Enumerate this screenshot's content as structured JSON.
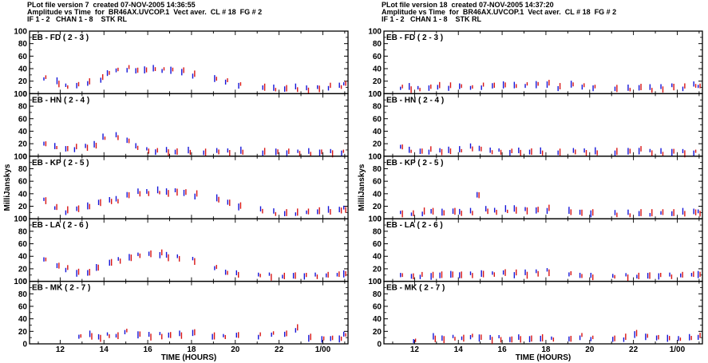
{
  "colors": {
    "primary_marks": "#1414d8",
    "secondary_marks": "#d81414",
    "axes": "#000000",
    "background": "#ffffff"
  },
  "plots": [
    {
      "header": {
        "line1": "PLot file version 7  created 07-NOV-2005 14:36:55",
        "line2": "Amplitude vs Time  for  BR46AX.UVCOP.1  Vect aver.  CL # 18  FG # 2",
        "line3": "IF 1 - 2   CHAN 1 - 8    STK RL"
      },
      "ylabel": "MilliJanskys",
      "xlabel": "TIME (HOURS)",
      "xtick_labels": [
        "12",
        "14",
        "16",
        "18",
        "20",
        "22",
        "1/00"
      ]
    },
    {
      "header": {
        "line1": "PLot file version 18  created 07-NOV-2005 14:37:20",
        "line2": "Amplitude vs Time  for  BR46AX.UVCOP.1  Vect aver.  CL # 18  FG # 2",
        "line3": "IF 1 - 2   CHAN 1 - 8    STK RL"
      },
      "ylabel": "MilliJanskys",
      "xlabel": "TIME (HOURS)",
      "xtick_labels": [
        "12",
        "14",
        "16",
        "18",
        "20",
        "22",
        "1/00"
      ]
    }
  ],
  "chart_data": [
    {
      "type": "scatter",
      "title": "Amplitude vs Time  for  BR46AX.UVCOP.1  Vect aver.  CL # 18  FG # 2",
      "xlabel": "TIME (HOURS)",
      "ylabel": "MilliJanskys",
      "xlim": [
        10.6,
        25.15
      ],
      "ylim": [
        0,
        100
      ],
      "yticks": [
        0,
        20,
        40,
        60,
        80,
        100
      ],
      "grid": false,
      "panels": [
        {
          "label": "EB - FD ( 2 - 3 )",
          "x": [
            11.3,
            11.9,
            12.3,
            12.8,
            13.3,
            13.9,
            14.2,
            14.6,
            15.1,
            15.5,
            15.9,
            16.3,
            16.7,
            17.1,
            17.6,
            18.1,
            19.1,
            19.6,
            20.2,
            21.3,
            21.8,
            22.3,
            22.8,
            23.3,
            23.8,
            24.3,
            24.8,
            25.0
          ],
          "y": [
            25,
            18,
            12,
            14,
            18,
            24,
            33,
            38,
            40,
            37,
            38,
            40,
            38,
            38,
            36,
            30,
            24,
            20,
            14,
            10,
            8,
            8,
            9,
            7,
            9,
            11,
            12,
            16
          ]
        },
        {
          "label": "EB - HN ( 2 - 4 )",
          "x": [
            11.3,
            11.8,
            12.3,
            12.7,
            13.2,
            13.6,
            14.0,
            14.6,
            15.1,
            15.5,
            16.0,
            16.4,
            16.9,
            17.3,
            17.9,
            18.6,
            19.2,
            19.7,
            20.3,
            21.3,
            21.9,
            22.4,
            22.9,
            23.4,
            23.9,
            24.4,
            24.9
          ],
          "y": [
            20,
            15,
            12,
            13,
            15,
            18,
            30,
            32,
            25,
            15,
            10,
            8,
            8,
            7,
            8,
            6,
            8,
            7,
            8,
            6,
            7,
            6,
            6,
            6,
            6,
            6,
            6
          ]
        },
        {
          "label": "EB - KP ( 2 - 5 )",
          "x": [
            11.3,
            11.8,
            12.3,
            12.8,
            13.3,
            13.8,
            14.3,
            14.6,
            15.1,
            15.6,
            16.0,
            16.5,
            16.9,
            17.3,
            17.7,
            18.2,
            19.2,
            19.7,
            20.2,
            21.2,
            21.8,
            22.3,
            22.8,
            23.3,
            23.8,
            24.3,
            24.8,
            25.0
          ],
          "y": [
            30,
            18,
            12,
            16,
            20,
            26,
            29,
            30,
            38,
            42,
            42,
            44,
            42,
            44,
            42,
            38,
            32,
            26,
            20,
            14,
            10,
            9,
            9,
            11,
            12,
            13,
            14,
            16
          ]
        },
        {
          "label": "EB - LA ( 2 - 6 )",
          "x": [
            11.3,
            11.9,
            12.3,
            12.8,
            13.3,
            13.7,
            14.3,
            14.7,
            15.2,
            15.6,
            16.1,
            16.6,
            16.9,
            17.4,
            18.1,
            19.1,
            19.6,
            20.1,
            21.1,
            21.6,
            22.2,
            22.7,
            23.2,
            23.7,
            24.2,
            24.7,
            25.0
          ],
          "y": [
            35,
            25,
            20,
            14,
            14,
            22,
            30,
            34,
            38,
            42,
            44,
            44,
            40,
            38,
            34,
            22,
            14,
            12,
            10,
            9,
            8,
            9,
            9,
            9,
            10,
            11,
            12
          ]
        },
        {
          "label": "EB - MK ( 2 - 7 )",
          "x": [
            12.9,
            13.4,
            13.8,
            14.2,
            14.6,
            15.0,
            15.6,
            16.1,
            16.6,
            17.0,
            17.5,
            18.1,
            19.0,
            19.5,
            20.1,
            21.1,
            21.7,
            22.3,
            22.8,
            23.4,
            24.0,
            24.4,
            24.8,
            25.0
          ],
          "y": [
            12,
            14,
            10,
            14,
            13,
            20,
            15,
            13,
            14,
            14,
            15,
            18,
            12,
            12,
            14,
            13,
            16,
            16,
            24,
            10,
            8,
            9,
            8,
            15
          ]
        }
      ]
    },
    {
      "type": "scatter",
      "title": "Amplitude vs Time  for  BR46AX.UVCOP.1  Vect aver.  CL # 18  FG # 2",
      "xlabel": "TIME (HOURS)",
      "ylabel": "MilliJanskys",
      "xlim": [
        10.6,
        25.15
      ],
      "ylim": [
        0,
        100
      ],
      "yticks": [
        0,
        20,
        40,
        60,
        80,
        100
      ],
      "grid": false,
      "panels": [
        {
          "label": "EB - FD ( 2 - 3 )",
          "x": [
            11.4,
            11.8,
            12.2,
            12.7,
            13.1,
            13.6,
            14.1,
            14.6,
            15.1,
            15.6,
            16.1,
            16.6,
            17.1,
            17.6,
            18.1,
            18.6,
            19.2,
            19.7,
            20.2,
            21.2,
            21.8,
            22.3,
            22.8,
            23.3,
            23.8,
            24.3,
            24.8,
            25.0
          ],
          "y": [
            10,
            9,
            8,
            10,
            12,
            11,
            12,
            10,
            12,
            13,
            14,
            13,
            14,
            15,
            16,
            10,
            15,
            12,
            10,
            8,
            8,
            10,
            8,
            9,
            12,
            10,
            14,
            12
          ]
        },
        {
          "label": "EB - HN ( 2 - 4 )",
          "x": [
            11.4,
            11.8,
            12.3,
            12.7,
            13.2,
            13.6,
            14.1,
            14.6,
            15.0,
            15.5,
            15.9,
            16.4,
            16.8,
            17.3,
            17.8,
            18.6,
            19.3,
            19.8,
            20.3,
            21.2,
            21.8,
            22.3,
            22.8,
            23.3,
            23.8,
            24.3,
            24.8
          ],
          "y": [
            15,
            9,
            8,
            9,
            8,
            9,
            10,
            14,
            12,
            8,
            8,
            7,
            7,
            7,
            7,
            6,
            8,
            7,
            7,
            6,
            8,
            10,
            7,
            6,
            7,
            6,
            6
          ]
        },
        {
          "label": "EB - KP ( 2 - 5 )",
          "x": [
            11.4,
            11.9,
            12.4,
            12.8,
            13.3,
            13.8,
            14.1,
            14.6,
            14.9,
            15.3,
            15.7,
            16.2,
            16.6,
            17.1,
            17.6,
            18.1,
            19.1,
            19.6,
            20.1,
            21.2,
            21.8,
            22.3,
            22.8,
            23.3,
            23.8,
            24.3,
            24.8,
            25.0
          ],
          "y": [
            9,
            8,
            10,
            12,
            10,
            12,
            10,
            11,
            38,
            14,
            12,
            14,
            15,
            14,
            14,
            15,
            12,
            10,
            9,
            8,
            8,
            9,
            8,
            10,
            9,
            10,
            11,
            10
          ]
        },
        {
          "label": "EB - LA ( 2 - 6 )",
          "x": [
            11.4,
            11.9,
            12.3,
            12.8,
            13.2,
            13.7,
            14.1,
            14.6,
            15.1,
            15.6,
            16.1,
            16.6,
            17.1,
            17.6,
            18.1,
            19.1,
            19.6,
            20.1,
            21.1,
            21.7,
            22.2,
            22.7,
            23.2,
            23.7,
            24.2,
            24.7,
            25.0
          ],
          "y": [
            10,
            8,
            9,
            9,
            10,
            11,
            10,
            11,
            12,
            12,
            14,
            12,
            12,
            14,
            16,
            12,
            9,
            8,
            8,
            8,
            8,
            9,
            9,
            9,
            10,
            11,
            11
          ]
        },
        {
          "label": "EB - MK ( 2 - 7 )",
          "x": [
            12.0,
            12.9,
            13.3,
            13.8,
            14.2,
            14.6,
            15.0,
            15.5,
            15.9,
            16.4,
            16.8,
            17.3,
            17.8,
            18.3,
            19.1,
            19.6,
            20.1,
            21.1,
            21.6,
            22.1,
            22.6,
            23.1,
            23.6,
            24.1,
            24.6,
            25.0
          ],
          "y": [
            5,
            10,
            8,
            10,
            9,
            12,
            10,
            8,
            9,
            7,
            9,
            8,
            9,
            8,
            8,
            12,
            9,
            8,
            9,
            16,
            12,
            10,
            9,
            8,
            10,
            12
          ]
        }
      ]
    }
  ]
}
